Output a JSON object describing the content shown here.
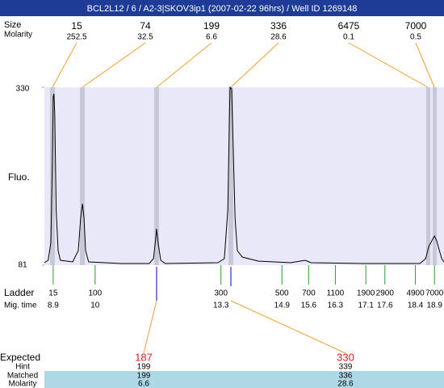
{
  "header": {
    "title": "BCL2L12 / 6 / A2-3|SKOV3ip1 (2007-02-22 96hrs) / Well ID 1269148"
  },
  "chart_data": {
    "type": "line",
    "ylabel": "Fluo.",
    "color": "#000000",
    "x": [
      8.67,
      8.77,
      8.84,
      8.88,
      8.9,
      8.92,
      8.94,
      8.98,
      9.03,
      9.09,
      9.41,
      9.56,
      9.62,
      9.67,
      9.71,
      9.75,
      9.83,
      10.68,
      11.42,
      11.53,
      11.59,
      11.61,
      11.65,
      11.72,
      11.84,
      13.22,
      13.39,
      13.48,
      13.52,
      13.54,
      13.58,
      13.62,
      13.67,
      13.73,
      13.86,
      14.28,
      15.13,
      15.38,
      15.51,
      15.66,
      17.04,
      18.52,
      18.67,
      18.75,
      18.84,
      18.9,
      18.96,
      19.03,
      19.09,
      19.15
    ],
    "values": [
      84.4,
      87.8,
      112.7,
      225.9,
      316.4,
      320.9,
      293.8,
      158.0,
      101.4,
      87.8,
      85.5,
      101.4,
      146.6,
      167.0,
      146.6,
      101.4,
      85.5,
      83.3,
      83.3,
      90.1,
      118.3,
      131.9,
      112.7,
      87.8,
      83.3,
      84.4,
      90.1,
      158.0,
      282.5,
      330,
      327.7,
      248.5,
      146.6,
      101.4,
      92.3,
      86.7,
      84.4,
      86.7,
      87.8,
      84.4,
      83.3,
      83.3,
      90.1,
      107.0,
      116.1,
      121.7,
      115.0,
      101.4,
      90.1,
      85.5
    ],
    "xlim": [
      8.67,
      19.15
    ],
    "ylim": [
      81,
      330
    ],
    "yticks": [
      81,
      330
    ]
  },
  "peaks": {
    "size_label": "Size",
    "molarity_label": "Molarity",
    "sizes": [
      15,
      74,
      199,
      336,
      6475,
      7000
    ],
    "molarities": [
      252.5,
      32.5,
      6.6,
      28.6,
      0.1,
      0.5
    ]
  },
  "ladder": {
    "label": "Ladder",
    "mig_time_label": "Mig. time",
    "sizes": [
      15,
      100,
      300,
      500,
      700,
      1100,
      1900,
      2900,
      4900,
      7000
    ],
    "mig_times": [
      8.9,
      10,
      13.3,
      14.9,
      15.6,
      16.3,
      17.1,
      17.6,
      18.4,
      18.9
    ]
  },
  "expected": {
    "label": "Expected",
    "values": [
      187,
      330
    ],
    "hint_label": "Hint",
    "hint": [
      199,
      339
    ],
    "matched_label": "Matched",
    "matched": [
      199,
      336
    ],
    "molarity_label": "Molarity",
    "molarity": [
      6.6,
      28.6
    ]
  }
}
